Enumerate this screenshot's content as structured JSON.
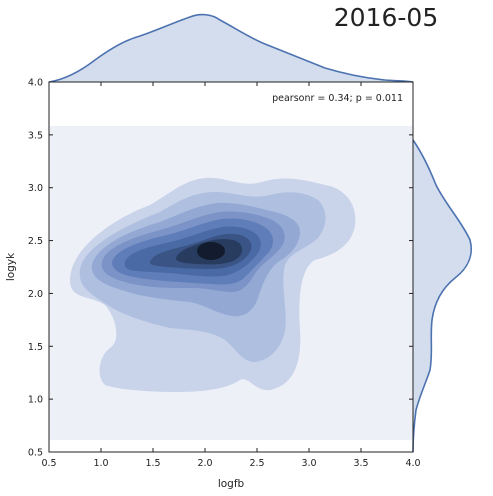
{
  "chart_data": {
    "type": "kde-joint",
    "title": "2016-05",
    "xlabel": "logfb",
    "ylabel": "logyk",
    "xlim": [
      0.5,
      4.0
    ],
    "ylim": [
      0.5,
      4.0
    ],
    "xticks": [
      "0.5",
      "1.0",
      "1.5",
      "2.0",
      "2.5",
      "3.0",
      "3.5",
      "4.0"
    ],
    "yticks": [
      "0.5",
      "1.0",
      "1.5",
      "2.0",
      "2.5",
      "3.0",
      "3.5",
      "4.0"
    ],
    "annotation": "pearsonr = 0.34; p = 0.011",
    "grid": false,
    "kde_levels": 9,
    "kde_peak": {
      "x": 2.05,
      "y": 2.38
    },
    "marginal_x_peak": 2.0,
    "marginal_y_peak": 2.4,
    "colors": {
      "line": "#4c72b0",
      "fill": "#d3ddee",
      "levels": [
        "#eef0f8",
        "#c9d4ea",
        "#aebfe0",
        "#93a9d4",
        "#7b93c6",
        "#5f7db8",
        "#4a6aa6",
        "#3a5486",
        "#283c60",
        "#131c2e"
      ]
    }
  }
}
